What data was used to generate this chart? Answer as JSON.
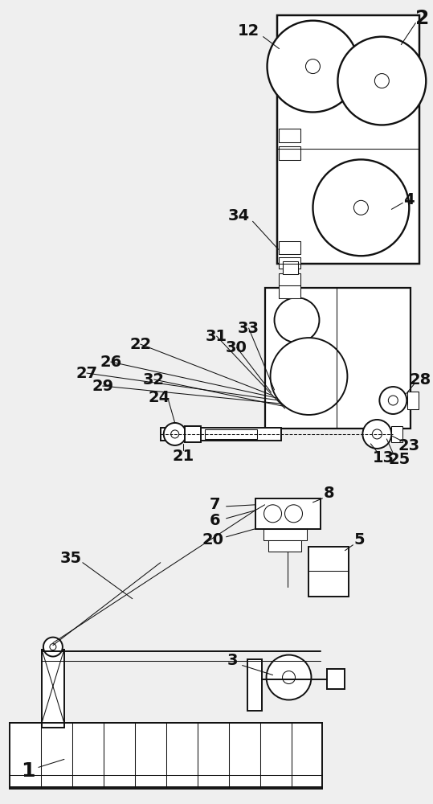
{
  "bg_color": "#efefef",
  "lc": "#111111",
  "lw": 1.4,
  "tlw": 0.75,
  "fs": 14,
  "fs_lg": 18
}
